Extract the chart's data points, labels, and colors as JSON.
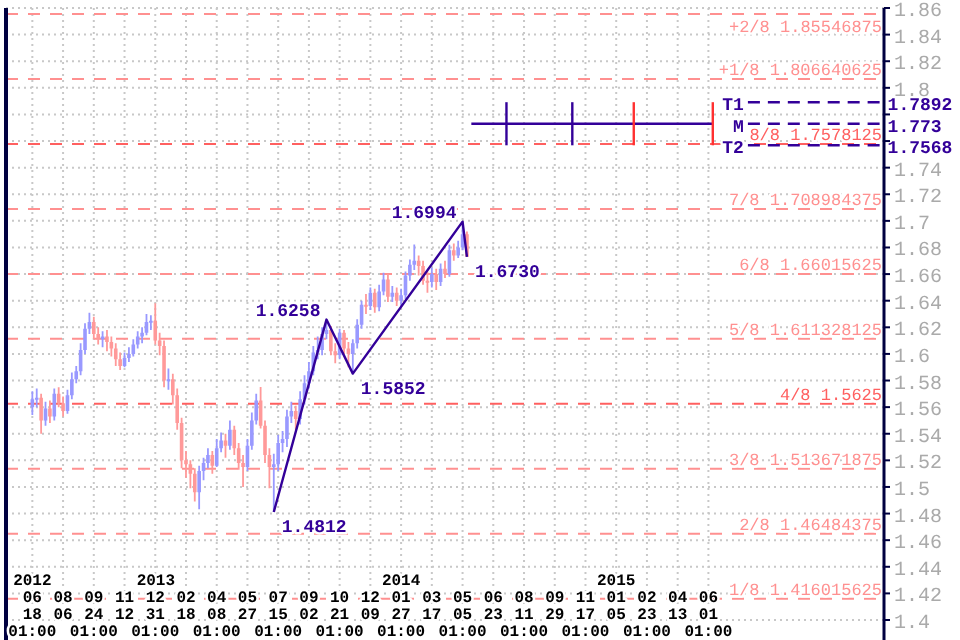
{
  "chart_data": {
    "type": "candlestick",
    "x": [
      "2012-06-18",
      "2012-06-25",
      "2012-07-02",
      "2012-07-09",
      "2012-07-16",
      "2012-07-23",
      "2012-07-30",
      "2012-08-06",
      "2012-08-13",
      "2012-08-20",
      "2012-08-27",
      "2012-09-03",
      "2012-09-10",
      "2012-09-17",
      "2012-09-24",
      "2012-10-01",
      "2012-10-08",
      "2012-10-15",
      "2012-10-22",
      "2012-10-29",
      "2012-11-05",
      "2012-11-12",
      "2012-11-19",
      "2012-11-26",
      "2012-12-03",
      "2012-12-10",
      "2012-12-17",
      "2012-12-24",
      "2012-12-31",
      "2013-01-07",
      "2013-01-14",
      "2013-01-21",
      "2013-01-28",
      "2013-02-04",
      "2013-02-11",
      "2013-02-18",
      "2013-02-25",
      "2013-03-04",
      "2013-03-11",
      "2013-03-18",
      "2013-03-25",
      "2013-04-01",
      "2013-04-08",
      "2013-04-15",
      "2013-04-22",
      "2013-04-29",
      "2013-05-06",
      "2013-05-13",
      "2013-05-20",
      "2013-05-27",
      "2013-06-03",
      "2013-06-10",
      "2013-06-17",
      "2013-06-24",
      "2013-07-01",
      "2013-07-08",
      "2013-07-15",
      "2013-07-22",
      "2013-07-29",
      "2013-08-05",
      "2013-08-12",
      "2013-08-19",
      "2013-08-26",
      "2013-09-02",
      "2013-09-09",
      "2013-09-16",
      "2013-09-23",
      "2013-09-30",
      "2013-10-07",
      "2013-10-14",
      "2013-10-21",
      "2013-10-28",
      "2013-11-04",
      "2013-11-11",
      "2013-11-18",
      "2013-11-25",
      "2013-12-02",
      "2013-12-09",
      "2013-12-16",
      "2013-12-23",
      "2013-12-30",
      "2014-01-06",
      "2014-01-13",
      "2014-01-20",
      "2014-01-27",
      "2014-02-03",
      "2014-02-10",
      "2014-02-17",
      "2014-02-24",
      "2014-03-03",
      "2014-03-10",
      "2014-03-17",
      "2014-03-24",
      "2014-03-31",
      "2014-04-07",
      "2014-04-14",
      "2014-04-21",
      "2014-04-28",
      "2014-05-05",
      "2014-05-12"
    ],
    "ohlc": [
      [
        1.56,
        1.572,
        1.554,
        1.566
      ],
      [
        1.566,
        1.574,
        1.56,
        1.567
      ],
      [
        1.567,
        1.57,
        1.54,
        1.55
      ],
      [
        1.55,
        1.564,
        1.546,
        1.559
      ],
      [
        1.559,
        1.565,
        1.548,
        1.553
      ],
      [
        1.553,
        1.574,
        1.55,
        1.57
      ],
      [
        1.57,
        1.575,
        1.56,
        1.563
      ],
      [
        1.563,
        1.568,
        1.553,
        1.557
      ],
      [
        1.557,
        1.573,
        1.555,
        1.569
      ],
      [
        1.569,
        1.586,
        1.566,
        1.581
      ],
      [
        1.581,
        1.591,
        1.578,
        1.587
      ],
      [
        1.587,
        1.608,
        1.584,
        1.603
      ],
      [
        1.603,
        1.623,
        1.6,
        1.619
      ],
      [
        1.619,
        1.631,
        1.615,
        1.624
      ],
      [
        1.624,
        1.628,
        1.611,
        1.615
      ],
      [
        1.615,
        1.62,
        1.607,
        1.611
      ],
      [
        1.611,
        1.617,
        1.605,
        1.613
      ],
      [
        1.613,
        1.618,
        1.602,
        1.609
      ],
      [
        1.609,
        1.613,
        1.598,
        1.604
      ],
      [
        1.604,
        1.608,
        1.591,
        1.596
      ],
      [
        1.596,
        1.601,
        1.588,
        1.591
      ],
      [
        1.591,
        1.601,
        1.59,
        1.597
      ],
      [
        1.597,
        1.605,
        1.594,
        1.6
      ],
      [
        1.6,
        1.611,
        1.598,
        1.607
      ],
      [
        1.607,
        1.617,
        1.604,
        1.613
      ],
      [
        1.613,
        1.62,
        1.608,
        1.616
      ],
      [
        1.616,
        1.63,
        1.614,
        1.624
      ],
      [
        1.624,
        1.629,
        1.618,
        1.625
      ],
      [
        1.625,
        1.638,
        1.607,
        1.61
      ],
      [
        1.61,
        1.616,
        1.599,
        1.606
      ],
      [
        1.606,
        1.61,
        1.575,
        1.58
      ],
      [
        1.58,
        1.589,
        1.573,
        1.581
      ],
      [
        1.581,
        1.585,
        1.562,
        1.569
      ],
      [
        1.569,
        1.574,
        1.543,
        1.548
      ],
      [
        1.548,
        1.552,
        1.514,
        1.52
      ],
      [
        1.52,
        1.527,
        1.507,
        1.517
      ],
      [
        1.517,
        1.52,
        1.499,
        1.51
      ],
      [
        1.51,
        1.514,
        1.489,
        1.496
      ],
      [
        1.496,
        1.516,
        1.4832,
        1.512
      ],
      [
        1.512,
        1.522,
        1.505,
        1.518
      ],
      [
        1.518,
        1.529,
        1.514,
        1.524
      ],
      [
        1.524,
        1.527,
        1.51,
        1.516
      ],
      [
        1.516,
        1.536,
        1.515,
        1.529
      ],
      [
        1.529,
        1.541,
        1.526,
        1.535
      ],
      [
        1.535,
        1.54,
        1.522,
        1.531
      ],
      [
        1.531,
        1.55,
        1.528,
        1.543
      ],
      [
        1.543,
        1.546,
        1.524,
        1.529
      ],
      [
        1.529,
        1.533,
        1.513,
        1.518
      ],
      [
        1.518,
        1.524,
        1.5,
        1.515
      ],
      [
        1.515,
        1.536,
        1.512,
        1.531
      ],
      [
        1.531,
        1.556,
        1.528,
        1.55
      ],
      [
        1.55,
        1.57,
        1.547,
        1.565
      ],
      [
        1.565,
        1.5752,
        1.544,
        1.546
      ],
      [
        1.546,
        1.55,
        1.518,
        1.524
      ],
      [
        1.524,
        1.529,
        1.499,
        1.515
      ],
      [
        1.515,
        1.525,
        1.4812,
        1.517
      ],
      [
        1.517,
        1.539,
        1.512,
        1.533
      ],
      [
        1.533,
        1.542,
        1.526,
        1.536
      ],
      [
        1.536,
        1.558,
        1.53,
        1.553
      ],
      [
        1.553,
        1.564,
        1.548,
        1.557
      ],
      [
        1.557,
        1.561,
        1.543,
        1.551
      ],
      [
        1.551,
        1.572,
        1.547,
        1.566
      ],
      [
        1.566,
        1.584,
        1.562,
        1.578
      ],
      [
        1.578,
        1.594,
        1.574,
        1.587
      ],
      [
        1.587,
        1.606,
        1.584,
        1.601
      ],
      [
        1.601,
        1.613,
        1.596,
        1.603
      ],
      [
        1.603,
        1.62,
        1.599,
        1.615
      ],
      [
        1.615,
        1.6258,
        1.611,
        1.618
      ],
      [
        1.618,
        1.621,
        1.599,
        1.602
      ],
      [
        1.602,
        1.608,
        1.593,
        1.599
      ],
      [
        1.599,
        1.619,
        1.596,
        1.616
      ],
      [
        1.616,
        1.618,
        1.6,
        1.604
      ],
      [
        1.604,
        1.609,
        1.59,
        1.6
      ],
      [
        1.6,
        1.611,
        1.5852,
        1.608
      ],
      [
        1.608,
        1.626,
        1.604,
        1.622
      ],
      [
        1.622,
        1.64,
        1.619,
        1.637
      ],
      [
        1.637,
        1.645,
        1.63,
        1.636
      ],
      [
        1.636,
        1.65,
        1.633,
        1.646
      ],
      [
        1.646,
        1.649,
        1.631,
        1.635
      ],
      [
        1.635,
        1.652,
        1.632,
        1.647
      ],
      [
        1.647,
        1.661,
        1.644,
        1.656
      ],
      [
        1.656,
        1.66,
        1.639,
        1.643
      ],
      [
        1.643,
        1.651,
        1.639,
        1.646
      ],
      [
        1.646,
        1.65,
        1.636,
        1.64
      ],
      [
        1.64,
        1.649,
        1.635,
        1.644
      ],
      [
        1.644,
        1.662,
        1.641,
        1.659
      ],
      [
        1.659,
        1.671,
        1.655,
        1.667
      ],
      [
        1.667,
        1.6822,
        1.663,
        1.67
      ],
      [
        1.67,
        1.674,
        1.659,
        1.666
      ],
      [
        1.666,
        1.67,
        1.652,
        1.655
      ],
      [
        1.655,
        1.662,
        1.646,
        1.654
      ],
      [
        1.654,
        1.665,
        1.65,
        1.66
      ],
      [
        1.66,
        1.664,
        1.648,
        1.654
      ],
      [
        1.654,
        1.668,
        1.651,
        1.664
      ],
      [
        1.664,
        1.67,
        1.657,
        1.66
      ],
      [
        1.66,
        1.682,
        1.658,
        1.678
      ],
      [
        1.678,
        1.683,
        1.67,
        1.674
      ],
      [
        1.674,
        1.685,
        1.672,
        1.68
      ],
      [
        1.68,
        1.6994,
        1.678,
        1.69
      ],
      [
        1.69,
        1.692,
        1.673,
        1.673
      ]
    ],
    "colors": [
      "#9999ff",
      "#9999ff",
      "#ff9999",
      "#9999ff",
      "#ff9999",
      "#9999ff",
      "#ff9999",
      "#ff9999",
      "#9999ff",
      "#9999ff",
      "#9999ff",
      "#9999ff",
      "#9999ff",
      "#9999ff",
      "#ff9999",
      "#ff9999",
      "#9999ff",
      "#ff9999",
      "#ff9999",
      "#ff9999",
      "#ff9999",
      "#9999ff",
      "#9999ff",
      "#9999ff",
      "#9999ff",
      "#9999ff",
      "#9999ff",
      "#9999ff",
      "#ff9999",
      "#ff9999",
      "#ff9999",
      "#9999ff",
      "#ff9999",
      "#ff9999",
      "#ff9999",
      "#ff9999",
      "#ff9999",
      "#ff9999",
      "#9999ff",
      "#9999ff",
      "#9999ff",
      "#ff9999",
      "#9999ff",
      "#9999ff",
      "#ff9999",
      "#9999ff",
      "#ff9999",
      "#ff9999",
      "#ff9999",
      "#9999ff",
      "#9999ff",
      "#9999ff",
      "#ff9999",
      "#ff9999",
      "#ff9999",
      "#9999ff",
      "#9999ff",
      "#9999ff",
      "#9999ff",
      "#9999ff",
      "#ff9999",
      "#9999ff",
      "#9999ff",
      "#9999ff",
      "#9999ff",
      "#9999ff",
      "#9999ff",
      "#9999ff",
      "#ff9999",
      "#ff9999",
      "#9999ff",
      "#ff9999",
      "#ff9999",
      "#9999ff",
      "#9999ff",
      "#9999ff",
      "#ff9999",
      "#9999ff",
      "#ff9999",
      "#9999ff",
      "#9999ff",
      "#ff9999",
      "#9999ff",
      "#ff9999",
      "#9999ff",
      "#9999ff",
      "#9999ff",
      "#9999ff",
      "#ff9999",
      "#ff9999",
      "#ff9999",
      "#9999ff",
      "#ff9999",
      "#9999ff",
      "#ff9999",
      "#9999ff",
      "#ff9999",
      "#9999ff",
      "#9999ff",
      "#ff9999"
    ],
    "xlim": [
      "2012-05-07",
      "2016-03-07"
    ],
    "x2lim": [
      "2012-05-07",
      "2016-03-07"
    ],
    "x2ticks": [
      {
        "value": "2012-06-18",
        "label": "2012"
      },
      {
        "value": "2013-01-01",
        "label": "2013"
      },
      {
        "value": "2014-01-27",
        "label": "2014"
      },
      {
        "value": "2015-01-05",
        "label": "2015"
      }
    ],
    "xticks": [
      {
        "value": "2012-06-18",
        "label": "06\n18\n01:00"
      },
      {
        "value": "2012-08-06",
        "label": "08\n06"
      },
      {
        "value": "2012-09-24",
        "label": "09\n24\n01:00"
      },
      {
        "value": "2012-11-12",
        "label": "11\n12"
      },
      {
        "value": "2012-12-31",
        "label": "12\n31\n01:00"
      },
      {
        "value": "2013-02-18",
        "label": "02\n18"
      },
      {
        "value": "2013-04-08",
        "label": "04\n08\n01:00"
      },
      {
        "value": "2013-05-27",
        "label": "05\n27"
      },
      {
        "value": "2013-07-15",
        "label": "07\n15\n01:00"
      },
      {
        "value": "2013-09-02",
        "label": "09\n02"
      },
      {
        "value": "2013-10-21",
        "label": "10\n21\n01:00"
      },
      {
        "value": "2013-12-09",
        "label": "12\n09"
      },
      {
        "value": "2014-01-27",
        "label": "01\n27\n01:00"
      },
      {
        "value": "2014-03-17",
        "label": "03\n17"
      },
      {
        "value": "2014-05-05",
        "label": "05\n05\n01:00"
      },
      {
        "value": "2014-06-23",
        "label": "06\n23"
      },
      {
        "value": "2014-08-11",
        "label": "08\n11\n01:00"
      },
      {
        "value": "2014-09-29",
        "label": "09\n29"
      },
      {
        "value": "2014-11-17",
        "label": "11\n17\n01:00"
      },
      {
        "value": "2015-01-05",
        "label": "01\n05"
      },
      {
        "value": "2015-02-23",
        "label": "02\n23\n01:00"
      },
      {
        "value": "2015-04-13",
        "label": "04\n13"
      },
      {
        "value": "2015-06-01",
        "label": "06\n01\n01:00"
      }
    ],
    "ylim": [
      1.4,
      1.86
    ],
    "yticks": [
      1.4,
      1.42,
      1.44,
      1.46,
      1.48,
      1.5,
      1.52,
      1.54,
      1.56,
      1.58,
      1.6,
      1.62,
      1.64,
      1.66,
      1.68,
      1.7,
      1.72,
      1.74,
      {
        "value": 1.76,
        "label": null
      },
      {
        "value": 1.78,
        "label": null
      },
      1.8,
      1.82,
      1.84,
      1.86
    ],
    "grid": true,
    "ref_lines": [
      {
        "axis": "y",
        "value": 1.85546875,
        "label": "+2/8 1.85546875",
        "color": "#ff9090",
        "line_style": "dashed"
      },
      {
        "axis": "y",
        "value": 1.806640625,
        "label": "+1/8 1.806640625",
        "color": "#ff9090",
        "line_style": "dashed"
      },
      {
        "axis": "y",
        "value": 1.7578125,
        "label": "8/8 1.7578125",
        "color": "#ff6060",
        "line_style": "dashed"
      },
      {
        "axis": "y",
        "value": 1.708984375,
        "label": "7/8 1.708984375",
        "color": "#ff9090",
        "line_style": "dashed"
      },
      {
        "axis": "y",
        "value": 1.66015625,
        "label": "6/8 1.66015625",
        "color": "#ff9090",
        "line_style": "dashed"
      },
      {
        "axis": "y",
        "value": 1.611328125,
        "label": "5/8 1.611328125",
        "color": "#ff9090",
        "line_style": "dashed"
      },
      {
        "axis": "y",
        "value": 1.5625,
        "label": "4/8 1.5625",
        "color": "#ff6060",
        "line_style": "dashed"
      },
      {
        "axis": "y",
        "value": 1.513671875,
        "label": "3/8 1.513671875",
        "color": "#ff9090",
        "line_style": "dashed"
      },
      {
        "axis": "y",
        "value": 1.46484375,
        "label": "2/8 1.46484375",
        "color": "#ff9090",
        "line_style": "dashed"
      },
      {
        "axis": "y",
        "value": 1.416015625,
        "label": "1/8 1.416015625",
        "color": "#ff9090",
        "line_style": "dashed"
      }
    ],
    "series": [
      {
        "type": "line",
        "color": "#330099",
        "x": [
          "2013-07-08",
          "2013-09-30",
          "2013-11-11",
          "2014-05-05",
          "2014-05-12"
        ],
        "values": [
          1.4812,
          1.6258,
          1.5852,
          1.6994,
          1.673
        ],
        "value_labels": [
          "1.4812",
          "1.6258",
          "1.5852",
          "1.6994",
          "1.6730"
        ]
      },
      {
        "type": "line",
        "color": "#330099",
        "x": [
          "2014-05-19",
          "2015-06-08"
        ],
        "values": [
          1.773,
          1.773
        ]
      },
      {
        "type": "line",
        "color": "#330099",
        "x": [
          "2014-07-14",
          "2014-07-14"
        ],
        "values": [
          1.7568,
          1.7892
        ]
      },
      {
        "type": "line",
        "color": "#330099",
        "x": [
          "2014-10-27",
          "2014-10-27"
        ],
        "values": [
          1.7568,
          1.7892
        ]
      },
      {
        "type": "line",
        "color": "#ff3030",
        "x": [
          "2015-02-02",
          "2015-02-02"
        ],
        "values": [
          1.7568,
          1.7892
        ]
      },
      {
        "type": "line",
        "color": "#ff3030",
        "x": [
          "2015-06-08",
          "2015-06-08"
        ],
        "values": [
          1.7568,
          1.7892
        ]
      },
      {
        "type": "line",
        "name": "T1",
        "color": "#330099",
        "line_style": "dashed",
        "x": [
          "2015-08-03",
          "2016-02-29"
        ],
        "values": [
          1.7892,
          1.7892
        ],
        "value_labels": [
          null,
          "1.7892"
        ]
      },
      {
        "type": "line",
        "name": "M",
        "color": "#330099",
        "line_style": "dashed",
        "x": [
          "2015-08-03",
          "2016-02-29"
        ],
        "values": [
          1.773,
          1.773
        ],
        "value_labels": [
          null,
          "1.773"
        ]
      },
      {
        "type": "line",
        "name": "T2",
        "color": "#330099",
        "line_style": "dashed",
        "x": [
          "2015-08-03",
          "2016-02-29"
        ],
        "values": [
          1.7568,
          1.7568
        ],
        "value_labels": [
          null,
          "1.7568"
        ]
      }
    ]
  }
}
